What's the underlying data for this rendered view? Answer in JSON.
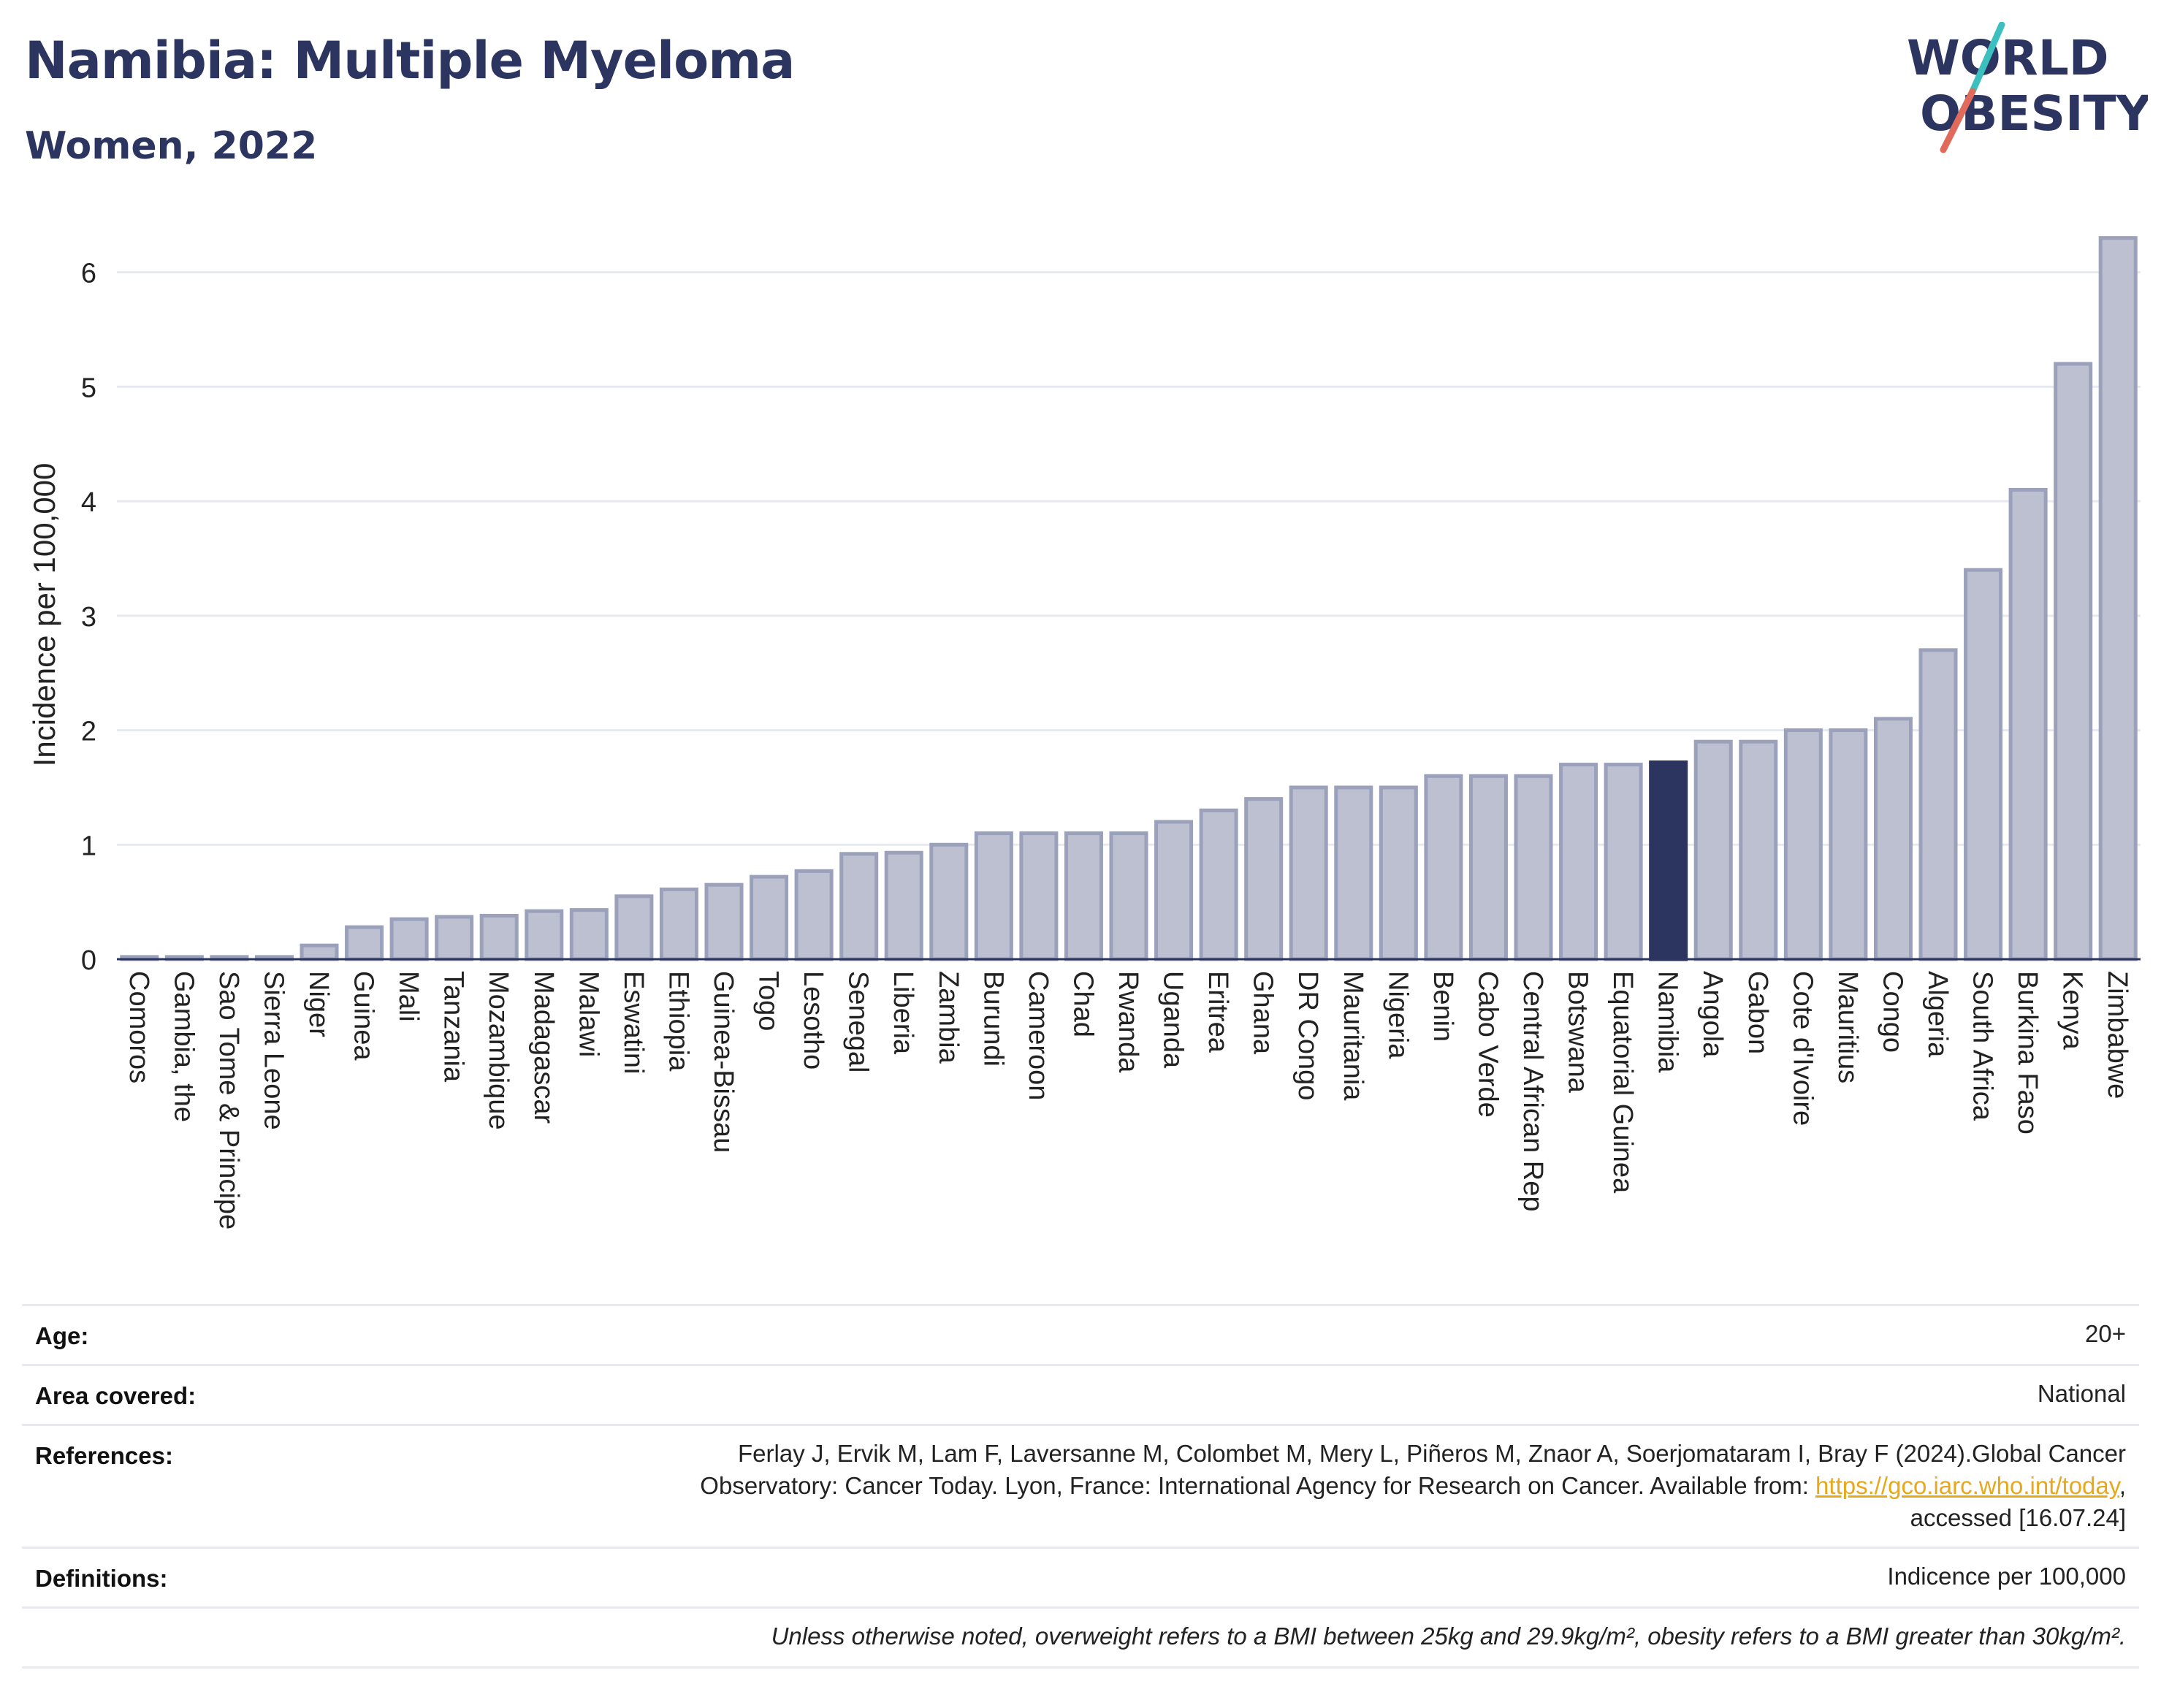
{
  "header": {
    "title": "Namibia: Multiple Myeloma",
    "subtitle": "Women, 2022"
  },
  "logo": {
    "line1": "WORLD",
    "line2": "OBESITY"
  },
  "colors": {
    "bar_fill": "#bcc0d0",
    "bar_stroke": "#9ba1bb",
    "highlight": "#2b3560",
    "grid": "#e6e9f0",
    "logo_teal": "#3bbfbf",
    "logo_coral": "#e06b5b"
  },
  "chart_data": {
    "type": "bar",
    "ylabel": "Incidence per 100,000",
    "ylim": [
      0,
      6.4
    ],
    "yticks": [
      0,
      1,
      2,
      3,
      4,
      5,
      6
    ],
    "grid": true,
    "highlight": "Namibia",
    "categories": [
      "Comoros",
      "Gambia, the",
      "Sao Tome & Principe",
      "Sierra Leone",
      "Niger",
      "Guinea",
      "Mali",
      "Tanzania",
      "Mozambique",
      "Madagascar",
      "Malawi",
      "Eswatini",
      "Ethiopia",
      "Guinea-Bissau",
      "Togo",
      "Lesotho",
      "Senegal",
      "Liberia",
      "Zambia",
      "Burundi",
      "Cameroon",
      "Chad",
      "Rwanda",
      "Uganda",
      "Eritrea",
      "Ghana",
      "DR Congo",
      "Mauritania",
      "Nigeria",
      "Benin",
      "Cabo Verde",
      "Central African Rep",
      "Botswana",
      "Equatorial Guinea",
      "Namibia",
      "Angola",
      "Gabon",
      "Cote d'Ivoire",
      "Mauritius",
      "Congo",
      "Algeria",
      "South Africa",
      "Burkina Faso",
      "Kenya",
      "Zimbabwe"
    ],
    "values": [
      0.02,
      0.02,
      0.02,
      0.02,
      0.12,
      0.28,
      0.35,
      0.37,
      0.38,
      0.42,
      0.43,
      0.55,
      0.61,
      0.65,
      0.72,
      0.77,
      0.92,
      0.93,
      1.0,
      1.1,
      1.1,
      1.1,
      1.1,
      1.2,
      1.3,
      1.4,
      1.5,
      1.5,
      1.5,
      1.6,
      1.6,
      1.6,
      1.7,
      1.7,
      1.72,
      1.9,
      1.9,
      2.0,
      2.0,
      2.1,
      2.7,
      3.4,
      4.1,
      5.2,
      6.3
    ]
  },
  "meta": {
    "age_label": "Age:",
    "age_value": "20+",
    "area_label": "Area covered:",
    "area_value": "National",
    "references_label": "References:",
    "references_line1": "Ferlay J, Ervik M, Lam F, Laversanne M, Colombet M, Mery L, Piñeros M, Znaor A, Soerjomataram I, Bray F (2024).Global Cancer",
    "references_line2_pre": "Observatory: Cancer Today. Lyon, France: International Agency for Research on Cancer. Available from: ",
    "references_link": "https://gco.iarc.who.int/today",
    "references_line2_post": ",",
    "references_line3": "accessed [16.07.24]",
    "definitions_label": "Definitions:",
    "definitions_value": "Indicence per 100,000",
    "note": "Unless otherwise noted, overweight refers to a BMI between 25kg and 29.9kg/m², obesity refers to a BMI greater than 30kg/m²."
  }
}
